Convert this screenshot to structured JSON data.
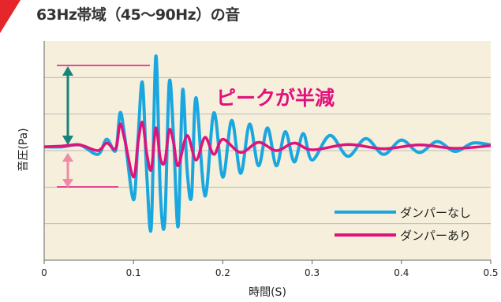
{
  "title": "63Hz帯域（45〜90Hz）の音",
  "chart_data": {
    "type": "line",
    "title": "63Hz帯域（45〜90Hz）の音",
    "xlabel": "時間(S)",
    "ylabel": "音圧(Pa)",
    "x_ticks": [
      "0",
      "0.1",
      "0.2",
      "0.3",
      "0.4",
      "0.5"
    ],
    "xlim": [
      0,
      0.5
    ],
    "grid": "horizontal",
    "legend_position": "bottom-right",
    "annotation": "ピークが半減",
    "series": [
      {
        "name": "ダンパーなし",
        "color": "#1aa7e0",
        "x": [
          0,
          0.02,
          0.04,
          0.06,
          0.07,
          0.08,
          0.085,
          0.09,
          0.1,
          0.105,
          0.11,
          0.115,
          0.12,
          0.125,
          0.13,
          0.135,
          0.14,
          0.145,
          0.15,
          0.155,
          0.16,
          0.165,
          0.17,
          0.18,
          0.19,
          0.2,
          0.21,
          0.22,
          0.23,
          0.24,
          0.25,
          0.26,
          0.27,
          0.28,
          0.29,
          0.3,
          0.32,
          0.34,
          0.36,
          0.38,
          0.4,
          0.42,
          0.44,
          0.46,
          0.48,
          0.5
        ],
        "y": [
          0,
          0,
          0.05,
          -0.2,
          0.2,
          -0.1,
          0.9,
          0.3,
          -1.4,
          0.2,
          1.7,
          -0.8,
          -2.1,
          2.4,
          -1.2,
          -2.0,
          1.7,
          0.2,
          -2.1,
          1.5,
          -0.6,
          -1.3,
          1.3,
          -1.3,
          0.9,
          -0.8,
          0.7,
          -0.7,
          0.6,
          -0.5,
          0.5,
          -0.5,
          0.4,
          -0.4,
          0.35,
          -0.35,
          0.3,
          -0.25,
          0.22,
          -0.2,
          0.18,
          -0.15,
          0.14,
          -0.12,
          0.1,
          0.05
        ]
      },
      {
        "name": "ダンパーあり",
        "color": "#e0127c",
        "x": [
          0,
          0.02,
          0.04,
          0.06,
          0.07,
          0.08,
          0.085,
          0.09,
          0.1,
          0.105,
          0.11,
          0.115,
          0.12,
          0.125,
          0.13,
          0.135,
          0.14,
          0.145,
          0.15,
          0.16,
          0.17,
          0.18,
          0.19,
          0.2,
          0.22,
          0.24,
          0.26,
          0.28,
          0.3,
          0.34,
          0.38,
          0.42,
          0.46,
          0.5
        ],
        "y": [
          0,
          0.02,
          0.05,
          -0.1,
          0.1,
          -0.05,
          0.6,
          0.2,
          -0.8,
          0.1,
          0.65,
          -0.2,
          -0.6,
          0.5,
          -0.3,
          -0.4,
          0.45,
          0.1,
          -0.5,
          0.3,
          -0.35,
          0.25,
          -0.2,
          0.2,
          -0.15,
          0.12,
          -0.1,
          0.1,
          -0.08,
          0.06,
          -0.05,
          0.05,
          -0.04,
          0.03
        ]
      }
    ],
    "ylim": [
      -3.0,
      2.8
    ]
  }
}
